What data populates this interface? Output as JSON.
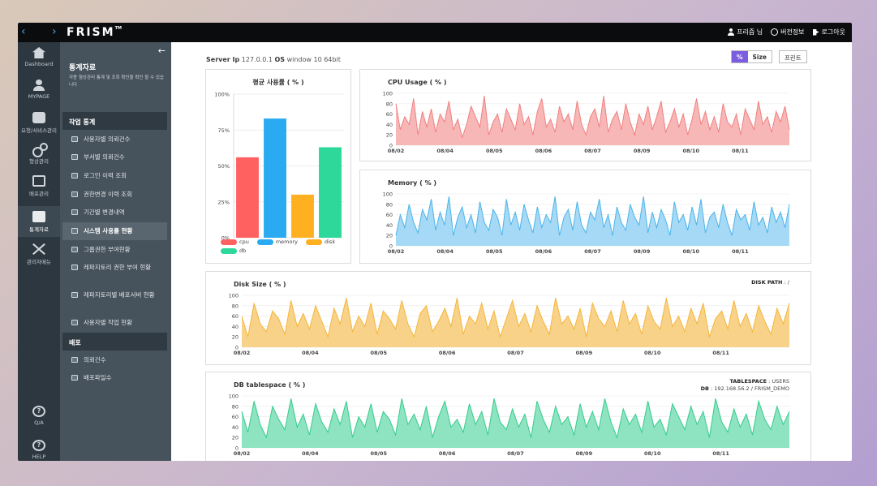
{
  "topbar": {
    "nav": "‹ ›",
    "logo": "FRISM",
    "logo_tm": "TM",
    "user_label": "프리즘 님",
    "version_label": "버전정보",
    "logout_label": "로그아웃"
  },
  "iconbar": {
    "items": [
      {
        "label": "Dashboard",
        "icon": "house-icon"
      },
      {
        "label": "MYPAGE",
        "icon": "person-icon"
      },
      {
        "label": "요청/서비스관리",
        "icon": "database-icon"
      },
      {
        "label": "형상관리",
        "icon": "gear-icon"
      },
      {
        "label": "배포관리",
        "icon": "phone-icon"
      },
      {
        "label": "통계자료",
        "icon": "stats-icon"
      },
      {
        "label": "관리자메뉴",
        "icon": "tools-icon"
      },
      {
        "label": "Q/A",
        "icon": "qa-icon"
      },
      {
        "label": "HELP",
        "icon": "help-icon"
      }
    ]
  },
  "menu": {
    "title": "통계자료",
    "desc": "각종 형상관리 통계 및 조회 확인을 확인 할 수 있습니다",
    "section1": "작업 통계",
    "items1": [
      "사용자별 의뢰건수",
      "부서별 의뢰건수",
      "로그인 이력 조회",
      "권한변경 이력 조회",
      "기간별 변경내역",
      "시스템 사용률 현황",
      "그룹권한 부여현황",
      "레파지토리 권한 부여 현황",
      "레파지토리별 배포서버 현황",
      "사용자별 작업 현황"
    ],
    "section2": "배포",
    "items2": [
      "의뢰건수",
      "배포파일수"
    ]
  },
  "header": {
    "server_label": "Server Ip",
    "server_ip": "127.0.0.1",
    "os_label": "OS",
    "os_value": "window 10 64bit",
    "btn_percent": "%",
    "btn_size": "Size",
    "btn_print": "프린트"
  },
  "panels": {
    "cpu_title": "CPU Usage ( % )",
    "mem_title": "Memory ( % )",
    "disk_title": "Disk Size ( % )",
    "disk_path_label": "DISK PATH",
    "disk_path_value": "/",
    "db_title": "DB tablespace ( % )",
    "tablespace_label": "TABLESPACE",
    "tablespace_value": "USERS",
    "db_label": "DB",
    "db_value": "192.168.56.2 / FRISM_DEMO"
  },
  "chart_data": [
    {
      "type": "bar",
      "title": "평균 사용률 ( % )",
      "categories": [
        "cpu",
        "memory",
        "disk",
        "db"
      ],
      "values": [
        56,
        83,
        30,
        63
      ],
      "colors": [
        "#ff6060",
        "#2aaaf0",
        "#ffb020",
        "#2dd89a"
      ],
      "ylim": [
        0,
        100
      ],
      "yticks": [
        "0%",
        "25%",
        "50%",
        "75%",
        "100%"
      ],
      "legend": "bottom"
    },
    {
      "type": "area",
      "title": "CPU Usage ( % )",
      "color": "#f07f7f",
      "fill": "#f8b7b7",
      "ylim": [
        0,
        100
      ],
      "yticks": [
        0,
        20,
        40,
        60,
        80,
        100
      ],
      "xticks": [
        "08/02",
        "08/04",
        "08/05",
        "08/06",
        "08/07",
        "08/09",
        "08/10",
        "08/11"
      ],
      "values": [
        80,
        30,
        55,
        40,
        90,
        20,
        65,
        35,
        70,
        25,
        60,
        45,
        85,
        30,
        50,
        15,
        40,
        75,
        55,
        35,
        95,
        20,
        45,
        60,
        25,
        70,
        50,
        30,
        80,
        40,
        55,
        20,
        65,
        90,
        35,
        50,
        25,
        75,
        45,
        60,
        30,
        85,
        40,
        20,
        55,
        70,
        35,
        95,
        25,
        50,
        65,
        30,
        80,
        45,
        20,
        60,
        40,
        75,
        30,
        55,
        85,
        25,
        45,
        70,
        35,
        60,
        20,
        50,
        90,
        40,
        65,
        30,
        55,
        25,
        80,
        45,
        35,
        60,
        20,
        70,
        50,
        30,
        85,
        40,
        55,
        25,
        65,
        45,
        75,
        30
      ]
    },
    {
      "type": "area",
      "title": "Memory ( % )",
      "color": "#4ab4ea",
      "fill": "#a6d9f5",
      "ylim": [
        0,
        100
      ],
      "yticks": [
        0,
        20,
        40,
        60,
        80,
        100
      ],
      "xticks": [
        "08/02",
        "08/04",
        "08/05",
        "08/06",
        "08/07",
        "08/09",
        "08/10",
        "08/11"
      ],
      "values": [
        20,
        60,
        35,
        80,
        45,
        25,
        70,
        50,
        90,
        30,
        65,
        40,
        95,
        20,
        55,
        75,
        35,
        60,
        25,
        85,
        45,
        30,
        70,
        55,
        20,
        90,
        40,
        65,
        30,
        80,
        50,
        25,
        75,
        35,
        60,
        45,
        95,
        20,
        55,
        70,
        30,
        85,
        40,
        25,
        65,
        50,
        90,
        35,
        60,
        20,
        75,
        45,
        30,
        80,
        55,
        40,
        95,
        25,
        65,
        35,
        70,
        50,
        20,
        85,
        45,
        60,
        30,
        75,
        40,
        90,
        25,
        55,
        65,
        35,
        80,
        45,
        20,
        70,
        50,
        60,
        30,
        85,
        40,
        55,
        25,
        75,
        45,
        65,
        35,
        80
      ]
    },
    {
      "type": "area",
      "title": "Disk Size ( % )",
      "color": "#f5b53a",
      "fill": "#f8d289",
      "ylim": [
        0,
        100
      ],
      "yticks": [
        0,
        20,
        40,
        60,
        80,
        100
      ],
      "xticks": [
        "08/02",
        "08/04",
        "08/05",
        "08/06",
        "08/07",
        "08/09",
        "08/10",
        "08/11"
      ],
      "values": [
        60,
        20,
        85,
        45,
        30,
        70,
        55,
        25,
        90,
        40,
        65,
        35,
        80,
        50,
        20,
        75,
        45,
        95,
        30,
        60,
        40,
        85,
        25,
        70,
        55,
        35,
        90,
        45,
        20,
        65,
        80,
        30,
        50,
        75,
        40,
        95,
        25,
        60,
        45,
        85,
        35,
        70,
        20,
        55,
        90,
        40,
        65,
        30,
        80,
        50,
        25,
        95,
        45,
        60,
        35,
        75,
        20,
        85,
        55,
        40,
        70,
        30,
        90,
        45,
        65,
        25,
        80,
        50,
        35,
        95,
        40,
        60,
        30,
        75,
        45,
        85,
        20,
        55,
        70,
        35,
        90,
        40,
        65,
        30,
        80,
        50,
        25,
        75,
        45,
        85
      ]
    },
    {
      "type": "area",
      "title": "DB tablespace ( % )",
      "color": "#34cc8e",
      "fill": "#8ee3c0",
      "ylim": [
        0,
        100
      ],
      "yticks": [
        0,
        20,
        40,
        60,
        80,
        100
      ],
      "xticks": [
        "08/02",
        "08/04",
        "08/05",
        "08/06",
        "08/07",
        "08/09",
        "08/10",
        "08/11"
      ],
      "values": [
        70,
        30,
        90,
        45,
        20,
        80,
        55,
        35,
        95,
        40,
        65,
        25,
        85,
        50,
        30,
        75,
        45,
        90,
        20,
        60,
        40,
        85,
        30,
        70,
        55,
        25,
        95,
        45,
        65,
        35,
        80,
        20,
        60,
        90,
        40,
        55,
        30,
        85,
        45,
        70,
        25,
        95,
        50,
        35,
        75,
        40,
        65,
        20,
        90,
        55,
        30,
        80,
        45,
        60,
        25,
        85,
        40,
        70,
        35,
        95,
        50,
        20,
        75,
        45,
        65,
        30,
        90,
        40,
        55,
        25,
        85,
        60,
        35,
        80,
        45,
        70,
        20,
        95,
        50,
        30,
        75,
        40,
        65,
        25,
        90,
        55,
        35,
        80,
        45,
        70
      ]
    }
  ]
}
